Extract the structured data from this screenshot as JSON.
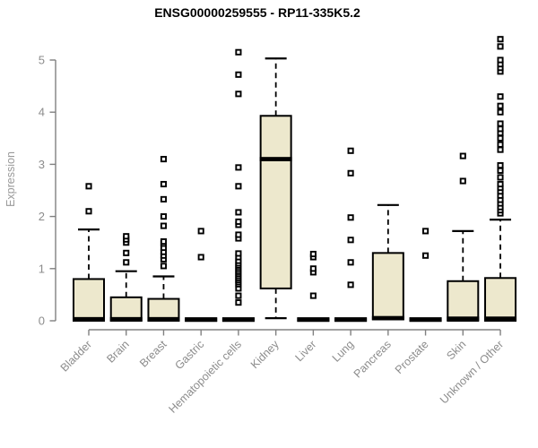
{
  "chart_data": {
    "type": "boxplot",
    "title": "ENSG00000259555 - RP11-335K5.2",
    "ylabel": "Expression",
    "xlabel": "",
    "ylim": [
      0,
      5
    ],
    "yticks": [
      0,
      1,
      2,
      3,
      4,
      5
    ],
    "grid": false,
    "legend": "none",
    "colors": {
      "box_fill": "#ede8cd",
      "box_stroke": "#000000",
      "median": "#000000",
      "whisker": "#000000",
      "outlier_stroke": "#000000",
      "axis": "#808080",
      "tick_label": "#8c8c8c",
      "axis_label": "#999999",
      "title": "#000000",
      "background": "#ffffff"
    },
    "categories": [
      "Bladder",
      "Brain",
      "Breast",
      "Gastric",
      "Hematopoietic cells",
      "Kidney",
      "Liver",
      "Lung",
      "Pancreas",
      "Prostate",
      "Skin",
      "Unknown / Other"
    ],
    "series": [
      {
        "name": "Bladder",
        "whisker_low": 0,
        "q1": 0,
        "median": 0.03,
        "q3": 0.8,
        "whisker_high": 1.75,
        "outliers": [
          2.1,
          2.58
        ]
      },
      {
        "name": "Brain",
        "whisker_low": 0,
        "q1": 0,
        "median": 0.03,
        "q3": 0.45,
        "whisker_high": 0.95,
        "outliers": [
          1.12,
          1.3,
          1.5,
          1.56,
          1.62
        ]
      },
      {
        "name": "Breast",
        "whisker_low": 0,
        "q1": 0,
        "median": 0.03,
        "q3": 0.42,
        "whisker_high": 0.85,
        "outliers": [
          1.05,
          1.18,
          1.25,
          1.32,
          1.4,
          1.48,
          1.52,
          1.82,
          2.0,
          2.33,
          2.62,
          3.1
        ]
      },
      {
        "name": "Gastric",
        "whisker_low": 0,
        "q1": 0,
        "median": 0.02,
        "q3": 0.05,
        "whisker_high": 0.05,
        "outliers": [
          1.22,
          1.72
        ]
      },
      {
        "name": "Hematopoietic cells",
        "whisker_low": 0,
        "q1": 0,
        "median": 0.02,
        "q3": 0.05,
        "whisker_high": 0.05,
        "outliers": [
          0.35,
          0.48,
          0.62,
          0.7,
          0.74,
          0.78,
          0.82,
          0.86,
          0.9,
          0.94,
          0.98,
          1.02,
          1.06,
          1.1,
          1.15,
          1.22,
          1.29,
          1.58,
          1.65,
          1.84,
          1.9,
          2.08,
          2.58,
          2.94,
          4.35,
          4.72,
          5.15
        ]
      },
      {
        "name": "Kidney",
        "whisker_low": 0.05,
        "q1": 0.62,
        "median": 3.1,
        "q3": 3.93,
        "whisker_high": 5.03,
        "outliers": []
      },
      {
        "name": "Liver",
        "whisker_low": 0,
        "q1": 0,
        "median": 0.02,
        "q3": 0.05,
        "whisker_high": 0.05,
        "outliers": [
          0.48,
          0.93,
          1.0,
          1.22,
          1.28
        ]
      },
      {
        "name": "Lung",
        "whisker_low": 0,
        "q1": 0,
        "median": 0.02,
        "q3": 0.05,
        "whisker_high": 0.05,
        "outliers": [
          0.69,
          1.12,
          1.55,
          1.98,
          2.83,
          3.26
        ]
      },
      {
        "name": "Pancreas",
        "whisker_low": 0.03,
        "q1": 0.03,
        "median": 0.05,
        "q3": 1.3,
        "whisker_high": 2.22,
        "outliers": []
      },
      {
        "name": "Prostate",
        "whisker_low": 0,
        "q1": 0,
        "median": 0.02,
        "q3": 0.05,
        "whisker_high": 0.05,
        "outliers": [
          1.25,
          1.72
        ]
      },
      {
        "name": "Skin",
        "whisker_low": 0,
        "q1": 0,
        "median": 0.04,
        "q3": 0.76,
        "whisker_high": 1.72,
        "outliers": [
          2.68,
          3.16
        ]
      },
      {
        "name": "Unknown / Other",
        "whisker_low": 0,
        "q1": 0,
        "median": 0.04,
        "q3": 0.82,
        "whisker_high": 1.94,
        "outliers": [
          2.06,
          2.12,
          2.18,
          2.25,
          2.32,
          2.4,
          2.48,
          2.55,
          2.62,
          2.75,
          2.88,
          2.98,
          3.28,
          3.38,
          3.5,
          3.6,
          3.68,
          3.78,
          4.0,
          4.12,
          4.3,
          4.78,
          4.85,
          4.92,
          5.0,
          5.26,
          5.4
        ]
      }
    ]
  }
}
